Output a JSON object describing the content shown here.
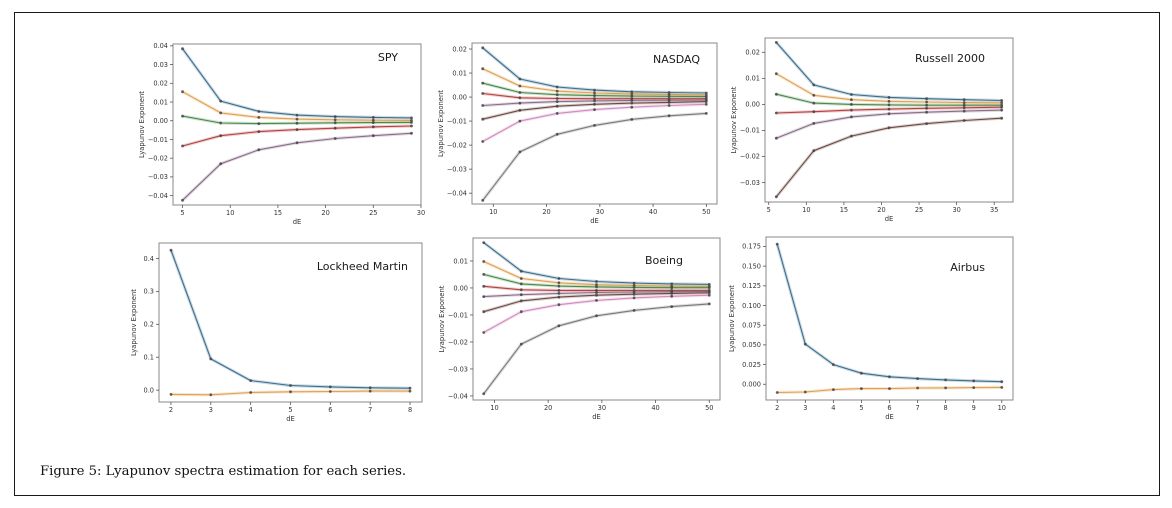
{
  "caption": {
    "label": "Figure 5:",
    "text": " Lyapunov spectra estimation for each series."
  },
  "colors": {
    "blue": "#3b6f8f",
    "orange": "#e0a050",
    "green": "#4a8a4a",
    "red": "#b84040",
    "purple": "#8a6e8a",
    "brown": "#6e4a42",
    "pink": "#d48ac0",
    "gray": "#7a7a7a"
  },
  "chart_data": [
    {
      "type": "line",
      "title": "SPY",
      "xlabel": "dE",
      "ylabel": "Lyapunov Exponent",
      "xlim": [
        4,
        30
      ],
      "ylim": [
        -0.045,
        0.041
      ],
      "xticks": [
        5,
        10,
        15,
        20,
        25,
        30
      ],
      "xtick_labels": [
        "5",
        "10",
        "15",
        "20",
        "25",
        "30"
      ],
      "yticks": [
        -0.04,
        -0.03,
        -0.02,
        -0.01,
        0.0,
        0.01,
        0.02,
        0.03,
        0.04
      ],
      "ytick_labels": [
        "-0.04",
        "-0.03",
        "-0.02",
        "-0.01",
        "0.00",
        "0.01",
        "0.02",
        "0.03",
        "0.04"
      ],
      "x": [
        5,
        9,
        13,
        17,
        21,
        25,
        29
      ],
      "series": [
        {
          "name": "blue",
          "values": [
            0.0385,
            0.0105,
            0.005,
            0.003,
            0.0022,
            0.0018,
            0.0015
          ]
        },
        {
          "name": "orange",
          "values": [
            0.0155,
            0.0042,
            0.0018,
            0.0009,
            0.0005,
            0.0003,
            0.0002
          ]
        },
        {
          "name": "green",
          "values": [
            0.0025,
            -0.0012,
            -0.0015,
            -0.0013,
            -0.0011,
            -0.001,
            -0.0009
          ]
        },
        {
          "name": "red",
          "values": [
            -0.0135,
            -0.008,
            -0.0058,
            -0.0047,
            -0.004,
            -0.0033,
            -0.0028
          ]
        },
        {
          "name": "purple",
          "values": [
            -0.0425,
            -0.023,
            -0.0155,
            -0.0118,
            -0.0095,
            -0.008,
            -0.0067
          ]
        }
      ]
    },
    {
      "type": "line",
      "title": "NASDAQ",
      "xlabel": "dE",
      "ylabel": "Lyapunov Exponent",
      "xlim": [
        6,
        52
      ],
      "ylim": [
        -0.0445,
        0.0225
      ],
      "xticks": [
        10,
        20,
        30,
        40,
        50
      ],
      "xtick_labels": [
        "10",
        "20",
        "30",
        "40",
        "50"
      ],
      "yticks": [
        -0.04,
        -0.03,
        -0.02,
        -0.01,
        0.0,
        0.01,
        0.02
      ],
      "ytick_labels": [
        "-0.04",
        "-0.03",
        "-0.02",
        "-0.01",
        "0.00",
        "0.01",
        "0.02"
      ],
      "x": [
        8,
        15,
        22,
        29,
        36,
        43,
        50
      ],
      "series": [
        {
          "name": "blue",
          "values": [
            0.0205,
            0.0075,
            0.0042,
            0.0029,
            0.0022,
            0.0019,
            0.0017
          ]
        },
        {
          "name": "orange",
          "values": [
            0.0118,
            0.0046,
            0.0025,
            0.0017,
            0.0013,
            0.0011,
            0.0009
          ]
        },
        {
          "name": "green",
          "values": [
            0.0058,
            0.0019,
            0.001,
            0.0006,
            0.0004,
            0.0003,
            0.0002
          ]
        },
        {
          "name": "red",
          "values": [
            0.0015,
            -0.0003,
            -0.0006,
            -0.0007,
            -0.0007,
            -0.0007,
            -0.0007
          ]
        },
        {
          "name": "purple",
          "values": [
            -0.0035,
            -0.0025,
            -0.0019,
            -0.0016,
            -0.0014,
            -0.0013,
            -0.0012
          ]
        },
        {
          "name": "brown",
          "values": [
            -0.0092,
            -0.0055,
            -0.0038,
            -0.003,
            -0.0025,
            -0.0022,
            -0.0019
          ]
        },
        {
          "name": "pink",
          "values": [
            -0.0185,
            -0.01,
            -0.0068,
            -0.0052,
            -0.0042,
            -0.0035,
            -0.003
          ]
        },
        {
          "name": "gray",
          "values": [
            -0.043,
            -0.0228,
            -0.0155,
            -0.0118,
            -0.0093,
            -0.0078,
            -0.0068
          ]
        }
      ]
    },
    {
      "type": "line",
      "title": "Russell 2000",
      "xlabel": "dE",
      "ylabel": "Lyapunov Exponent",
      "xlim": [
        4.5,
        37.5
      ],
      "ylim": [
        -0.0375,
        0.0255
      ],
      "xticks": [
        5,
        10,
        15,
        20,
        25,
        30,
        35
      ],
      "xtick_labels": [
        "5",
        "10",
        "15",
        "20",
        "25",
        "30",
        "35"
      ],
      "yticks": [
        -0.03,
        -0.02,
        -0.01,
        0.0,
        0.01,
        0.02
      ],
      "ytick_labels": [
        "-0.03",
        "-0.02",
        "-0.01",
        "0.00",
        "0.01",
        "0.02"
      ],
      "x": [
        6,
        11,
        16,
        21,
        26,
        31,
        36
      ],
      "series": [
        {
          "name": "blue",
          "values": [
            0.0238,
            0.0075,
            0.0038,
            0.0027,
            0.0022,
            0.0018,
            0.0015
          ]
        },
        {
          "name": "orange",
          "values": [
            0.0118,
            0.0035,
            0.0018,
            0.0012,
            0.0009,
            0.0007,
            0.0006
          ]
        },
        {
          "name": "green",
          "values": [
            0.0039,
            0.0005,
            0.0,
            -0.0002,
            -0.0003,
            -0.0003,
            -0.0003
          ]
        },
        {
          "name": "red",
          "values": [
            -0.0033,
            -0.0028,
            -0.0022,
            -0.0018,
            -0.0015,
            -0.0013,
            -0.0011
          ]
        },
        {
          "name": "purple",
          "values": [
            -0.013,
            -0.0073,
            -0.0048,
            -0.0036,
            -0.003,
            -0.0026,
            -0.0022
          ]
        },
        {
          "name": "brown",
          "values": [
            -0.0355,
            -0.0178,
            -0.0122,
            -0.009,
            -0.0074,
            -0.0062,
            -0.0053
          ]
        }
      ]
    },
    {
      "type": "line",
      "title": "Lockheed Martin",
      "xlabel": "dE",
      "ylabel": "Lyapunov Exponent",
      "xlim": [
        1.7,
        8.3
      ],
      "ylim": [
        -0.036,
        0.447
      ],
      "xticks": [
        2,
        3,
        4,
        5,
        6,
        7,
        8
      ],
      "xtick_labels": [
        "2",
        "3",
        "4",
        "5",
        "6",
        "7",
        "8"
      ],
      "yticks": [
        0.0,
        0.1,
        0.2,
        0.3,
        0.4
      ],
      "ytick_labels": [
        "0.0",
        "0.1",
        "0.2",
        "0.3",
        "0.4"
      ],
      "x": [
        2,
        3,
        4,
        5,
        6,
        7,
        8
      ],
      "series": [
        {
          "name": "blue",
          "values": [
            0.425,
            0.095,
            0.029,
            0.014,
            0.01,
            0.007,
            0.006
          ]
        },
        {
          "name": "orange",
          "values": [
            -0.013,
            -0.014,
            -0.007,
            -0.005,
            -0.004,
            -0.003,
            -0.003
          ]
        }
      ]
    },
    {
      "type": "line",
      "title": "Boeing",
      "xlabel": "dE",
      "ylabel": "Lyapunov Exponent",
      "xlim": [
        6,
        52
      ],
      "ylim": [
        -0.0415,
        0.0185
      ],
      "xticks": [
        10,
        20,
        30,
        40,
        50
      ],
      "xtick_labels": [
        "10",
        "20",
        "30",
        "40",
        "50"
      ],
      "yticks": [
        -0.04,
        -0.03,
        -0.02,
        -0.01,
        0.0,
        0.01
      ],
      "ytick_labels": [
        "-0.04",
        "-0.03",
        "-0.02",
        "-0.01",
        "0.00",
        "0.01"
      ],
      "x": [
        8,
        15,
        22,
        29,
        36,
        43,
        50
      ],
      "series": [
        {
          "name": "blue",
          "values": [
            0.0168,
            0.0062,
            0.0035,
            0.0024,
            0.0018,
            0.0015,
            0.0013
          ]
        },
        {
          "name": "orange",
          "values": [
            0.0098,
            0.0035,
            0.0019,
            0.0012,
            0.0009,
            0.0007,
            0.0006
          ]
        },
        {
          "name": "green",
          "values": [
            0.005,
            0.0015,
            0.0007,
            0.0004,
            0.0002,
            0.0001,
            0.0001
          ]
        },
        {
          "name": "red",
          "values": [
            0.0006,
            -0.0007,
            -0.0009,
            -0.0009,
            -0.0009,
            -0.0009,
            -0.0009
          ]
        },
        {
          "name": "purple",
          "values": [
            -0.0032,
            -0.0025,
            -0.002,
            -0.0017,
            -0.0015,
            -0.0014,
            -0.0013
          ]
        },
        {
          "name": "brown",
          "values": [
            -0.0088,
            -0.0048,
            -0.0034,
            -0.0027,
            -0.0023,
            -0.002,
            -0.0018
          ]
        },
        {
          "name": "pink",
          "values": [
            -0.0165,
            -0.0088,
            -0.0062,
            -0.0046,
            -0.0037,
            -0.0031,
            -0.0027
          ]
        },
        {
          "name": "gray",
          "values": [
            -0.0392,
            -0.0208,
            -0.014,
            -0.0103,
            -0.0083,
            -0.0069,
            -0.0059
          ]
        }
      ]
    },
    {
      "type": "line",
      "title": "Airbus",
      "xlabel": "dE",
      "ylabel": "Lyapunov Exponent",
      "xlim": [
        1.6,
        10.4
      ],
      "ylim": [
        -0.02,
        0.187
      ],
      "xticks": [
        2,
        3,
        4,
        5,
        6,
        7,
        8,
        9,
        10
      ],
      "xtick_labels": [
        "2",
        "3",
        "4",
        "5",
        "6",
        "7",
        "8",
        "9",
        "10"
      ],
      "yticks": [
        0.0,
        0.025,
        0.05,
        0.075,
        0.1,
        0.125,
        0.15,
        0.175
      ],
      "ytick_labels": [
        "0.000",
        "0.025",
        "0.050",
        "0.075",
        "0.100",
        "0.125",
        "0.150",
        "0.175"
      ],
      "x": [
        2,
        3,
        4,
        5,
        6,
        7,
        8,
        9,
        10
      ],
      "series": [
        {
          "name": "blue",
          "values": [
            0.178,
            0.051,
            0.025,
            0.014,
            0.0095,
            0.0072,
            0.0055,
            0.0042,
            0.0033
          ]
        },
        {
          "name": "orange",
          "values": [
            -0.0105,
            -0.0098,
            -0.0068,
            -0.0055,
            -0.0055,
            -0.0048,
            -0.0046,
            -0.0042,
            -0.004
          ]
        }
      ]
    }
  ]
}
